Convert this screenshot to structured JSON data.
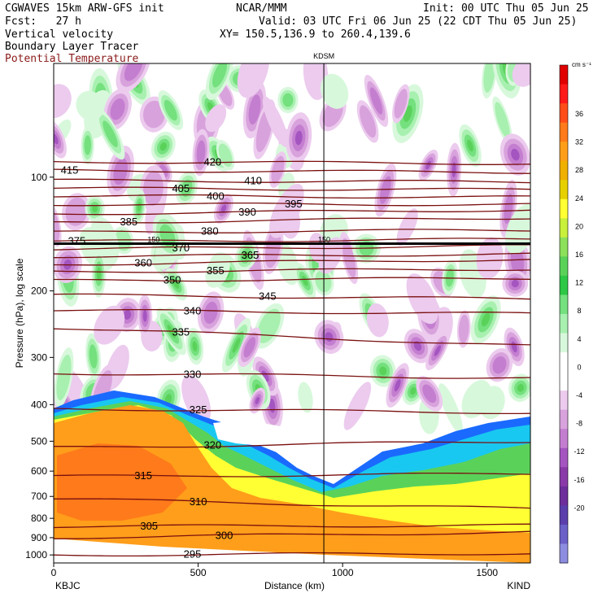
{
  "header": {
    "model": "CGWAVES 15km ARW-GFS init",
    "org": "NCAR/MMM",
    "init": "Init: 00 UTC Thu 05 Jun 25",
    "fcst": "Fcst:   27 h",
    "valid": "Valid: 03 UTC Fri 06 Jun 25 (22 CDT Thu 05 Jun 25)",
    "field1": "Vertical velocity",
    "field2": "Boundary Layer Tracer",
    "field3": "Potential Temperature",
    "xy": "XY= 150.5,136.9 to 260.4,139.6",
    "field3_color": "#8b1a1a"
  },
  "chart_data": {
    "type": "heatmap",
    "title": "Vertical velocity / Boundary Layer Tracer / Potential Temperature cross section",
    "xlabel": "Distance (km)",
    "ylabel": "Pressure (hPa), log scale",
    "xlim": [
      0,
      1650
    ],
    "ylim": [
      1050,
      50
    ],
    "y_scale": "log",
    "x_ticks": [
      0,
      500,
      1000,
      1500
    ],
    "y_ticks": [
      100,
      200,
      300,
      400,
      500,
      600,
      700,
      800,
      900,
      1000
    ],
    "endpoint_left": "KBJC",
    "endpoint_right": "KIND",
    "station_marker": {
      "label": "KDSM",
      "x": 935
    },
    "tropopause_label": "150",
    "colorbar": {
      "unit": "cm s⁻¹",
      "tick_labels": [
        "36",
        "32",
        "28",
        "24",
        "20",
        "16",
        "12",
        "8",
        "4",
        "0",
        "-4",
        "-8",
        "-12",
        "-16",
        "-20"
      ],
      "colors": [
        "#e00000",
        "#ff1a1a",
        "#ff4d1a",
        "#ff7a1a",
        "#ff9e1a",
        "#f0b000",
        "#e6d000",
        "#ffff33",
        "#c8f03c",
        "#8ce05a",
        "#5ad25a",
        "#2ec846",
        "#74e07e",
        "#a8f0b0",
        "#d8f8dc",
        "#ffffff",
        "#ffffff",
        "#eccbee",
        "#d8a2dc",
        "#c47ed0",
        "#a455c0",
        "#8a3aa8",
        "#6d2e9c",
        "#5a3eac",
        "#6a60c8",
        "#8c8ce0"
      ]
    },
    "theta_contours": [
      {
        "value": 295,
        "label": "295",
        "p_left": 1000,
        "p_right": 990,
        "label_x": 480
      },
      {
        "value": 300,
        "label": "300",
        "p_left": 900,
        "p_right": 870,
        "label_x": 590
      },
      {
        "value": 305,
        "label": "305",
        "p_left": 840,
        "p_right": 835,
        "label_x": 330
      },
      {
        "value": 310,
        "label": "310",
        "p_left": 710,
        "p_right": 755,
        "label_x": 500
      },
      {
        "value": 315,
        "label": "315",
        "p_left": 620,
        "p_right": 610,
        "label_x": 310
      },
      {
        "value": 320,
        "label": "320",
        "p_left": 520,
        "p_right": 500,
        "label_x": 550
      },
      {
        "value": 325,
        "label": "325",
        "p_left": 410,
        "p_right": 420,
        "label_x": 500
      },
      {
        "value": 330,
        "label": "330",
        "p_left": 330,
        "p_right": 340,
        "label_x": 480
      },
      {
        "value": 335,
        "label": "335",
        "p_left": 250,
        "p_right": 280,
        "label_x": 440
      },
      {
        "value": 340,
        "label": "340",
        "p_left": 225,
        "p_right": 230,
        "label_x": 480
      },
      {
        "value": 345,
        "label": "345",
        "p_left": 205,
        "p_right": 210,
        "label_x": 740
      },
      {
        "value": 350,
        "label": "350",
        "p_left": 188,
        "p_right": 185,
        "label_x": 410
      },
      {
        "value": 355,
        "label": "355",
        "p_left": 178,
        "p_right": 175,
        "label_x": 560
      },
      {
        "value": 360,
        "label": "360",
        "p_left": 170,
        "p_right": 165,
        "label_x": 310
      },
      {
        "value": 365,
        "label": "365",
        "p_left": 162,
        "p_right": 160,
        "label_x": 680
      },
      {
        "value": 370,
        "label": "370",
        "p_left": 155,
        "p_right": 152,
        "label_x": 440
      },
      {
        "value": 375,
        "label": "375",
        "p_left": 148,
        "p_right": 146,
        "label_x": 80
      },
      {
        "value": 380,
        "label": "380",
        "p_left": 140,
        "p_right": 138,
        "label_x": 540
      },
      {
        "value": 385,
        "label": "385",
        "p_left": 132,
        "p_right": 128,
        "label_x": 260
      },
      {
        "value": 390,
        "label": "390",
        "p_left": 125,
        "p_right": 122,
        "label_x": 670
      },
      {
        "value": 395,
        "label": "395",
        "p_left": 118,
        "p_right": 118,
        "label_x": 830
      },
      {
        "value": 400,
        "label": "400",
        "p_left": 112,
        "p_right": 113,
        "label_x": 560
      },
      {
        "value": 405,
        "label": "405",
        "p_left": 107,
        "p_right": 108,
        "label_x": 440
      },
      {
        "value": 410,
        "label": "410",
        "p_left": 102,
        "p_right": 103,
        "label_x": 690
      },
      {
        "value": 415,
        "label": "415",
        "p_left": 96,
        "p_right": 97,
        "label_x": 55
      },
      {
        "value": 420,
        "label": "420",
        "p_left": 91,
        "p_right": 92,
        "label_x": 550
      }
    ]
  }
}
